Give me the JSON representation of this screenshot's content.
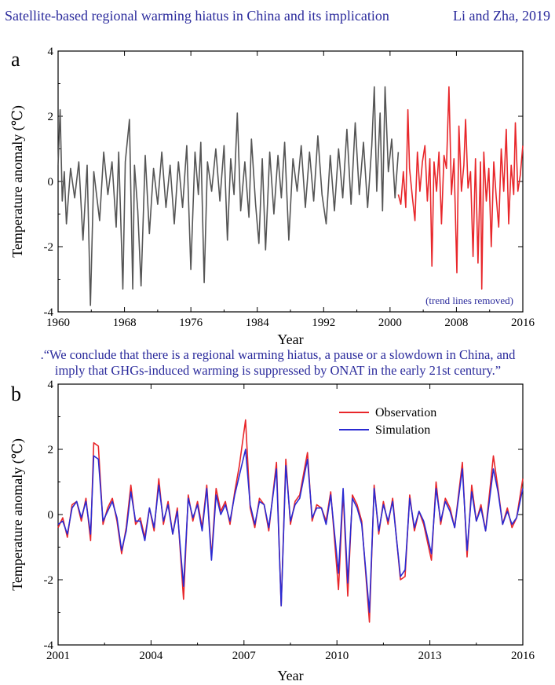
{
  "header": {
    "title": "Satellite-based regional warming hiatus in China and its implication",
    "citation": "Li and Zha, 2019"
  },
  "quote": {
    "line1": ".“We conclude that there is a regional warming hiatus, a pause or a slowdown in China, and",
    "line2": "imply that GHGs-induced warming is suppressed by ONAT in the early 21st century.”"
  },
  "colors": {
    "historical": "#555555",
    "observation": "#e8262a",
    "simulation": "#2a2ad2"
  },
  "chart_data": [
    {
      "type": "line",
      "panel_label": "a",
      "xlabel": "Year",
      "ylabel": "Temperature anomaly (℃)",
      "xlim": [
        1960,
        2016
      ],
      "ylim": [
        -4,
        4
      ],
      "xticks": [
        1960,
        1968,
        1976,
        1984,
        1992,
        2000,
        2008,
        2016
      ],
      "yticks": [
        -4,
        -2,
        0,
        2,
        4
      ],
      "annotation": "(trend lines removed)",
      "series": [
        {
          "color": "#555555",
          "x": [
            1960,
            1960.25,
            1960.5,
            1960.75,
            1961,
            1961.5,
            1962,
            1962.5,
            1963,
            1963.5,
            1963.9,
            1964.3,
            1965,
            1965.5,
            1966,
            1966.5,
            1967,
            1967.3,
            1967.8,
            1968.1,
            1968.6,
            1969,
            1969.2,
            1969.6,
            1970,
            1970.5,
            1971,
            1971.5,
            1972,
            1972.5,
            1973,
            1973.5,
            1974,
            1974.5,
            1975,
            1975.5,
            1976,
            1976.5,
            1976.9,
            1977.2,
            1977.6,
            1978,
            1978.5,
            1979,
            1979.5,
            1980,
            1980.4,
            1980.8,
            1981.2,
            1981.6,
            1982,
            1982.5,
            1983,
            1983.3,
            1983.8,
            1984.2,
            1984.6,
            1985,
            1985.5,
            1986,
            1986.5,
            1986.9,
            1987.3,
            1987.8,
            1988.3,
            1988.8,
            1989.3,
            1989.8,
            1990.3,
            1990.8,
            1991.3,
            1991.8,
            1992.3,
            1992.8,
            1993.3,
            1993.8,
            1994.3,
            1994.8,
            1995.3,
            1995.8,
            1996.3,
            1996.8,
            1997.3,
            1997.8,
            1998.1,
            1998.4,
            1998.8,
            1999.1,
            1999.4,
            1999.8,
            2000.2,
            2000.6,
            2001
          ],
          "values": [
            0.5,
            2.2,
            -0.6,
            0.3,
            -1.3,
            0.4,
            -0.5,
            0.6,
            -1.8,
            0.5,
            -3.8,
            0.3,
            -1.2,
            0.9,
            -0.4,
            0.6,
            -1.4,
            0.9,
            -3.3,
            0.6,
            1.9,
            -3.3,
            0.5,
            -0.9,
            -3.2,
            0.8,
            -1.6,
            0.4,
            -0.7,
            0.9,
            -0.8,
            0.5,
            -1.3,
            0.6,
            -0.8,
            1.1,
            -2.7,
            0.9,
            -0.4,
            1.2,
            -3.1,
            0.6,
            -0.3,
            1.0,
            -0.6,
            1.1,
            -1.8,
            0.7,
            -0.4,
            2.1,
            -0.9,
            0.6,
            -1.1,
            1.3,
            -0.7,
            -1.9,
            0.7,
            -2.1,
            0.9,
            -1.0,
            0.8,
            -0.5,
            1.2,
            -1.8,
            0.7,
            -0.3,
            1.1,
            -0.8,
            0.9,
            -0.6,
            1.4,
            -0.4,
            -1.3,
            0.8,
            -0.9,
            1.0,
            -0.5,
            1.6,
            -0.7,
            1.8,
            -0.4,
            1.2,
            -0.8,
            1.1,
            2.9,
            -0.3,
            2.1,
            -0.9,
            2.9,
            0.3,
            1.3,
            -0.5,
            0.9
          ]
        },
        {
          "color": "#e8262a",
          "x": [
            2001,
            2001.3,
            2001.6,
            2001.9,
            2002.15,
            2002.35,
            2002.7,
            2003,
            2003.3,
            2003.6,
            2003.9,
            2004.2,
            2004.5,
            2004.8,
            2005.05,
            2005.3,
            2005.6,
            2005.9,
            2006.2,
            2006.5,
            2006.8,
            2007.1,
            2007.4,
            2007.7,
            2008.05,
            2008.3,
            2008.6,
            2008.9,
            2009.1,
            2009.4,
            2009.7,
            2010,
            2010.3,
            2010.6,
            2010.9,
            2011.05,
            2011.3,
            2011.6,
            2011.9,
            2012.2,
            2012.5,
            2012.8,
            2013.1,
            2013.4,
            2013.7,
            2014,
            2014.3,
            2014.6,
            2014.9,
            2015.1,
            2015.4,
            2015.7,
            2016
          ],
          "values": [
            -0.4,
            -0.7,
            0.3,
            -0.8,
            2.2,
            0.4,
            -0.5,
            -1.2,
            0.9,
            -0.3,
            0.6,
            1.1,
            -0.6,
            0.7,
            -2.6,
            0.6,
            -0.3,
            0.9,
            -1.3,
            0.8,
            0.4,
            2.9,
            -0.4,
            0.7,
            -2.8,
            1.7,
            -0.3,
            0.5,
            1.9,
            -0.2,
            0.3,
            -2.3,
            0.7,
            -2.5,
            0.6,
            -3.3,
            0.9,
            -0.6,
            0.4,
            -2.0,
            0.6,
            -0.5,
            -1.4,
            1.0,
            -0.3,
            1.6,
            -1.3,
            0.5,
            -0.4,
            1.8,
            -0.3,
            0.2,
            1.1
          ]
        }
      ]
    },
    {
      "type": "line",
      "panel_label": "b",
      "xlabel": "Year",
      "ylabel": "Temperature anomaly (℃)",
      "xlim": [
        2001,
        2016
      ],
      "ylim": [
        -4,
        4
      ],
      "xticks": [
        2001,
        2004,
        2007,
        2010,
        2013,
        2016
      ],
      "yticks": [
        -4,
        -2,
        0,
        2,
        4
      ],
      "legend_position": "top-right",
      "series": [
        {
          "name": "Observation",
          "color": "#e8262a",
          "x": [
            2001,
            2001.15,
            2001.3,
            2001.45,
            2001.6,
            2001.75,
            2001.9,
            2002.05,
            2002.15,
            2002.3,
            2002.45,
            2002.6,
            2002.75,
            2002.9,
            2003.05,
            2003.2,
            2003.35,
            2003.5,
            2003.65,
            2003.8,
            2003.95,
            2004.1,
            2004.25,
            2004.4,
            2004.55,
            2004.7,
            2004.85,
            2005.05,
            2005.2,
            2005.35,
            2005.5,
            2005.65,
            2005.8,
            2005.95,
            2006.1,
            2006.25,
            2006.4,
            2006.55,
            2006.7,
            2006.85,
            2007.05,
            2007.2,
            2007.35,
            2007.5,
            2007.65,
            2007.8,
            2008.05,
            2008.2,
            2008.35,
            2008.5,
            2008.65,
            2008.8,
            2009.05,
            2009.2,
            2009.35,
            2009.5,
            2009.65,
            2009.8,
            2010.05,
            2010.2,
            2010.35,
            2010.5,
            2010.65,
            2010.8,
            2011.05,
            2011.2,
            2011.35,
            2011.5,
            2011.65,
            2011.8,
            2012.05,
            2012.2,
            2012.35,
            2012.5,
            2012.65,
            2012.8,
            2013.05,
            2013.2,
            2013.35,
            2013.5,
            2013.65,
            2013.8,
            2014.05,
            2014.2,
            2014.35,
            2014.5,
            2014.65,
            2014.8,
            2015.05,
            2015.2,
            2015.35,
            2015.5,
            2015.65,
            2015.8,
            2016
          ],
          "values": [
            -0.4,
            -0.1,
            -0.7,
            0.3,
            0.4,
            -0.2,
            0.5,
            -0.8,
            2.2,
            2.1,
            -0.3,
            0.2,
            0.5,
            -0.2,
            -1.2,
            -0.4,
            0.9,
            -0.3,
            -0.1,
            -0.7,
            0.2,
            -0.5,
            1.1,
            -0.3,
            0.4,
            -0.6,
            0.2,
            -2.6,
            0.6,
            -0.2,
            0.4,
            -0.4,
            0.9,
            -1.3,
            0.8,
            0.1,
            0.4,
            -0.3,
            0.7,
            1.5,
            2.9,
            0.2,
            -0.4,
            0.5,
            0.3,
            -0.5,
            1.6,
            -2.8,
            1.7,
            -0.3,
            0.4,
            0.6,
            1.9,
            -0.2,
            0.3,
            0.2,
            -0.2,
            0.7,
            -2.3,
            0.7,
            -2.5,
            0.6,
            0.3,
            -0.2,
            -3.3,
            0.9,
            -0.6,
            0.4,
            -0.3,
            0.5,
            -2.0,
            -1.9,
            0.6,
            -0.5,
            0.1,
            -0.3,
            -1.4,
            1.0,
            -0.3,
            0.5,
            0.2,
            -0.4,
            1.6,
            -1.3,
            0.9,
            -0.2,
            0.3,
            -0.5,
            1.8,
            0.8,
            -0.3,
            0.2,
            -0.4,
            -0.1,
            1.1
          ]
        },
        {
          "name": "Simulation",
          "color": "#2a2ad2",
          "x": [
            2001,
            2001.15,
            2001.3,
            2001.45,
            2001.6,
            2001.75,
            2001.9,
            2002.05,
            2002.15,
            2002.3,
            2002.45,
            2002.6,
            2002.75,
            2002.9,
            2003.05,
            2003.2,
            2003.35,
            2003.5,
            2003.65,
            2003.8,
            2003.95,
            2004.1,
            2004.25,
            2004.4,
            2004.55,
            2004.7,
            2004.85,
            2005.05,
            2005.2,
            2005.35,
            2005.5,
            2005.65,
            2005.8,
            2005.95,
            2006.1,
            2006.25,
            2006.4,
            2006.55,
            2006.7,
            2006.85,
            2007.05,
            2007.2,
            2007.35,
            2007.5,
            2007.65,
            2007.8,
            2008.05,
            2008.2,
            2008.35,
            2008.5,
            2008.65,
            2008.8,
            2009.05,
            2009.2,
            2009.35,
            2009.5,
            2009.65,
            2009.8,
            2010.05,
            2010.2,
            2010.35,
            2010.5,
            2010.65,
            2010.8,
            2011.05,
            2011.2,
            2011.35,
            2011.5,
            2011.65,
            2011.8,
            2012.05,
            2012.2,
            2012.35,
            2012.5,
            2012.65,
            2012.8,
            2013.05,
            2013.2,
            2013.35,
            2013.5,
            2013.65,
            2013.8,
            2014.05,
            2014.2,
            2014.35,
            2014.5,
            2014.65,
            2014.8,
            2015.05,
            2015.2,
            2015.35,
            2015.5,
            2015.65,
            2015.8,
            2016
          ],
          "values": [
            -0.3,
            -0.2,
            -0.6,
            0.2,
            0.4,
            -0.1,
            0.4,
            -0.6,
            1.8,
            1.7,
            -0.2,
            0.1,
            0.4,
            -0.1,
            -1.1,
            -0.5,
            0.7,
            -0.2,
            -0.2,
            -0.8,
            0.2,
            -0.4,
            0.9,
            -0.2,
            0.3,
            -0.6,
            0.1,
            -2.2,
            0.5,
            -0.1,
            0.3,
            -0.5,
            0.8,
            -1.4,
            0.6,
            0.0,
            0.3,
            -0.2,
            0.6,
            1.2,
            2.0,
            0.3,
            -0.3,
            0.4,
            0.3,
            -0.4,
            1.4,
            -2.8,
            1.5,
            -0.2,
            0.3,
            0.5,
            1.7,
            -0.1,
            0.2,
            0.2,
            -0.3,
            0.6,
            -1.8,
            0.8,
            -2.1,
            0.5,
            0.2,
            -0.3,
            -3.0,
            0.8,
            -0.5,
            0.3,
            -0.2,
            0.4,
            -1.9,
            -1.7,
            0.5,
            -0.4,
            0.1,
            -0.2,
            -1.2,
            0.8,
            -0.2,
            0.4,
            0.1,
            -0.4,
            1.4,
            -1.1,
            0.7,
            -0.2,
            0.2,
            -0.5,
            1.4,
            0.7,
            -0.3,
            0.1,
            -0.3,
            -0.1,
            0.8
          ]
        }
      ]
    }
  ]
}
